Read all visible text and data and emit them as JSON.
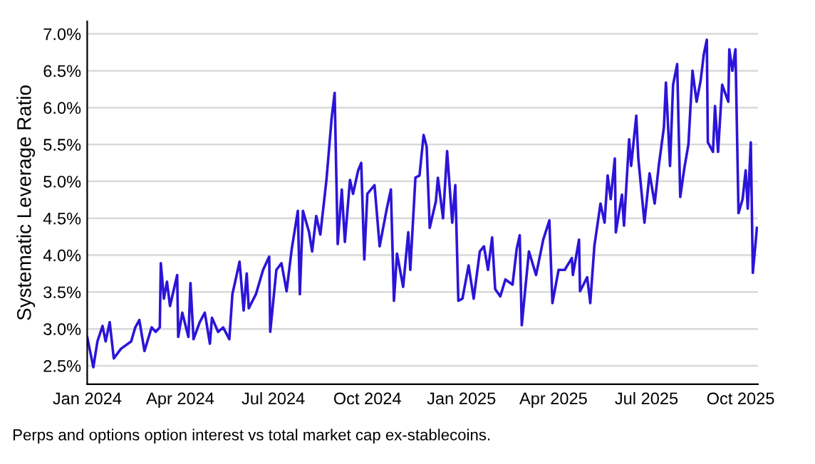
{
  "chart_data": {
    "type": "line",
    "ylabel": "Systematic Leverage Ratio",
    "annotations": [
      "Perps and options option interest vs total market cap ex-stablecoins."
    ],
    "x": [
      "2024-01-01",
      "2024-01-07",
      "2024-01-11",
      "2024-01-16",
      "2024-01-19",
      "2024-01-23",
      "2024-01-27",
      "2024-02-03",
      "2024-02-13",
      "2024-02-17",
      "2024-02-21",
      "2024-02-26",
      "2024-03-04",
      "2024-03-08",
      "2024-03-12",
      "2024-03-13",
      "2024-03-16",
      "2024-03-19",
      "2024-03-22",
      "2024-03-29",
      "2024-03-30",
      "2024-04-03",
      "2024-04-09",
      "2024-04-11",
      "2024-04-14",
      "2024-04-20",
      "2024-04-25",
      "2024-04-30",
      "2024-05-02",
      "2024-05-08",
      "2024-05-13",
      "2024-05-19",
      "2024-05-22",
      "2024-05-29",
      "2024-06-02",
      "2024-06-05",
      "2024-06-07",
      "2024-06-14",
      "2024-06-21",
      "2024-06-27",
      "2024-06-28",
      "2024-07-04",
      "2024-07-09",
      "2024-07-14",
      "2024-07-19",
      "2024-07-25",
      "2024-07-27",
      "2024-07-30",
      "2024-08-05",
      "2024-08-08",
      "2024-08-12",
      "2024-08-16",
      "2024-08-22",
      "2024-08-27",
      "2024-08-30",
      "2024-09-02",
      "2024-09-06",
      "2024-09-09",
      "2024-09-14",
      "2024-09-17",
      "2024-09-22",
      "2024-09-25",
      "2024-09-28",
      "2024-10-01",
      "2024-10-08",
      "2024-10-13",
      "2024-10-20",
      "2024-10-24",
      "2024-10-27",
      "2024-10-30",
      "2024-11-05",
      "2024-11-10",
      "2024-11-12",
      "2024-11-17",
      "2024-11-21",
      "2024-11-25",
      "2024-11-28",
      "2024-12-01",
      "2024-12-07",
      "2024-12-09",
      "2024-12-14",
      "2024-12-18",
      "2024-12-23",
      "2024-12-26",
      "2024-12-29",
      "2025-01-02",
      "2025-01-08",
      "2025-01-13",
      "2025-01-19",
      "2025-01-23",
      "2025-01-27",
      "2025-01-31",
      "2025-02-03",
      "2025-02-08",
      "2025-02-13",
      "2025-02-20",
      "2025-02-24",
      "2025-02-27",
      "2025-03-01",
      "2025-03-08",
      "2025-03-15",
      "2025-03-22",
      "2025-03-28",
      "2025-03-31",
      "2025-04-06",
      "2025-04-12",
      "2025-04-19",
      "2025-04-20",
      "2025-04-26",
      "2025-04-27",
      "2025-05-04",
      "2025-05-07",
      "2025-05-11",
      "2025-05-17",
      "2025-05-21",
      "2025-05-24",
      "2025-05-27",
      "2025-05-31",
      "2025-06-01",
      "2025-06-07",
      "2025-06-09",
      "2025-06-14",
      "2025-06-16",
      "2025-06-21",
      "2025-06-23",
      "2025-06-29",
      "2025-07-04",
      "2025-07-09",
      "2025-07-13",
      "2025-07-18",
      "2025-07-20",
      "2025-07-24",
      "2025-07-27",
      "2025-07-31",
      "2025-08-03",
      "2025-08-07",
      "2025-08-11",
      "2025-08-15",
      "2025-08-19",
      "2025-08-23",
      "2025-08-26",
      "2025-08-29",
      "2025-08-30",
      "2025-09-04",
      "2025-09-06",
      "2025-09-09",
      "2025-09-13",
      "2025-09-19",
      "2025-09-20",
      "2025-09-23",
      "2025-09-26",
      "2025-09-29",
      "2025-10-03",
      "2025-10-06",
      "2025-10-08",
      "2025-10-11",
      "2025-10-13",
      "2025-10-17"
    ],
    "series": [
      {
        "color": "#2c14d8",
        "values": [
          2.89,
          2.48,
          2.83,
          3.04,
          2.83,
          3.09,
          2.6,
          2.73,
          2.83,
          3.02,
          3.12,
          2.7,
          3.02,
          2.96,
          3.02,
          3.89,
          3.41,
          3.64,
          3.31,
          3.73,
          2.89,
          3.22,
          2.89,
          3.62,
          2.86,
          3.09,
          3.22,
          2.8,
          3.15,
          2.96,
          3.02,
          2.86,
          3.47,
          3.91,
          3.25,
          3.75,
          3.28,
          3.47,
          3.8,
          3.98,
          2.96,
          3.8,
          3.89,
          3.51,
          4.08,
          4.6,
          3.47,
          4.6,
          4.31,
          4.05,
          4.53,
          4.28,
          5.02,
          5.85,
          6.2,
          4.15,
          4.89,
          4.18,
          5.02,
          4.83,
          5.15,
          5.25,
          3.94,
          4.83,
          4.95,
          4.12,
          4.63,
          4.89,
          3.38,
          4.02,
          3.57,
          4.31,
          3.8,
          5.05,
          5.08,
          5.63,
          5.47,
          4.37,
          4.73,
          5.05,
          4.5,
          5.41,
          4.44,
          4.95,
          3.38,
          3.41,
          3.86,
          3.41,
          4.05,
          4.12,
          3.8,
          4.24,
          3.54,
          3.44,
          3.67,
          3.6,
          4.08,
          4.27,
          3.05,
          4.05,
          3.73,
          4.21,
          4.47,
          3.35,
          3.8,
          3.8,
          3.96,
          3.73,
          4.21,
          3.51,
          3.7,
          3.35,
          4.12,
          4.7,
          4.44,
          5.08,
          4.76,
          5.31,
          4.31,
          4.82,
          4.4,
          5.57,
          5.21,
          5.89,
          5.31,
          4.44,
          5.11,
          4.7,
          5.21,
          5.73,
          6.34,
          5.21,
          6.31,
          6.59,
          4.79,
          5.18,
          5.5,
          6.5,
          6.08,
          6.37,
          6.72,
          6.92,
          5.53,
          5.4,
          6.02,
          5.4,
          6.31,
          6.08,
          6.79,
          6.5,
          6.79,
          4.57,
          4.76,
          5.15,
          4.63,
          5.53,
          3.76,
          4.37
        ]
      }
    ],
    "xlim": [
      "2024-01-01",
      "2025-10-18"
    ],
    "xticks": [
      {
        "value": "2024-01-01",
        "label": "Jan 2024"
      },
      {
        "value": "2024-04-01",
        "label": "Apr 2024"
      },
      {
        "value": "2024-07-01",
        "label": "Jul 2024"
      },
      {
        "value": "2024-10-01",
        "label": "Oct 2024"
      },
      {
        "value": "2025-01-01",
        "label": "Jan 2025"
      },
      {
        "value": "2025-04-01",
        "label": "Apr 2025"
      },
      {
        "value": "2025-07-01",
        "label": "Jul 2025"
      },
      {
        "value": "2025-10-01",
        "label": "Oct 2025"
      }
    ],
    "ylim": [
      2.25,
      7.17
    ],
    "yticks": [
      {
        "value": 2.5,
        "label": "2.5%"
      },
      {
        "value": 3.0,
        "label": "3.0%"
      },
      {
        "value": 3.5,
        "label": "3.5%"
      },
      {
        "value": 4.0,
        "label": "4.0%"
      },
      {
        "value": 4.5,
        "label": "4.5%"
      },
      {
        "value": 5.0,
        "label": "5.0%"
      },
      {
        "value": 5.5,
        "label": "5.5%"
      },
      {
        "value": 6.0,
        "label": "6.0%"
      },
      {
        "value": 6.5,
        "label": "6.5%"
      },
      {
        "value": 7.0,
        "label": "7.0%"
      }
    ],
    "grid": "y",
    "marker": "none",
    "line_style": "solid"
  }
}
